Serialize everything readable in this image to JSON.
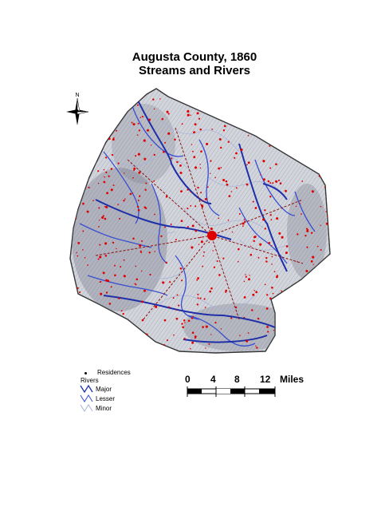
{
  "title": {
    "line1": "Augusta County, 1860",
    "line2": "Streams and Rivers"
  },
  "compass": {
    "north_label": "N",
    "icon": "north-arrow-compass-icon"
  },
  "legend": {
    "residences_label": "Residences",
    "rivers_label": "Rivers",
    "items": [
      {
        "label": "Major",
        "color": "#1f2fa8"
      },
      {
        "label": "Lesser",
        "color": "#3a4fd0"
      },
      {
        "label": "Minor",
        "color": "#a8b4d8"
      }
    ],
    "residence_color": "#e00000"
  },
  "scale_bar": {
    "ticks": [
      "0",
      "4",
      "8",
      "12"
    ],
    "unit": "Miles"
  },
  "colors": {
    "terrain_base": "#c9cbd4",
    "terrain_hatch": "#7f8294",
    "major_river": "#1f2fa8",
    "lesser_river": "#3a4fd0",
    "minor_river": "#a8b4d8",
    "residence": "#e00000",
    "road": "#8a1010"
  }
}
